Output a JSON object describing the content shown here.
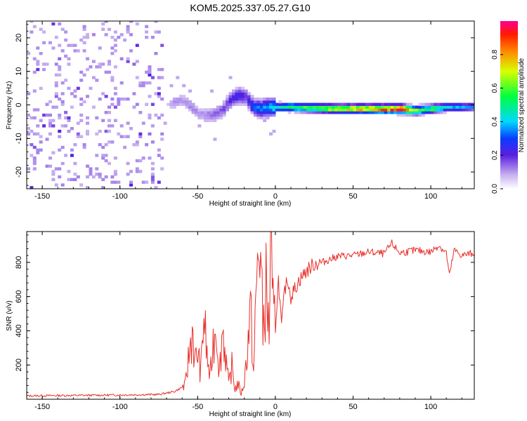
{
  "title": "KOM5.2025.337.05.27.G10",
  "chart_data": [
    {
      "type": "heatmap",
      "title": "KOM5.2025.337.05.27.G10",
      "xlabel": "Height of straight line (km)",
      "ylabel": "Frequency (Hz)",
      "xlim": [
        -160,
        128
      ],
      "ylim": [
        -25,
        25
      ],
      "x_ticks": [
        -150,
        -100,
        -50,
        0,
        50,
        100
      ],
      "y_ticks": [
        -20,
        -10,
        0,
        10,
        20
      ],
      "colorbar": {
        "label": "Normalized spectral amplitude",
        "range": [
          0,
          1
        ],
        "ticks": [
          "0.0",
          "0.2",
          "0.4",
          "0.6",
          "0.8"
        ]
      },
      "trace": {
        "description": "dominant frequency ridge",
        "height_km": [
          -72,
          -66,
          -60,
          -55,
          -50,
          -45,
          -40,
          -35,
          -30,
          -25,
          -20,
          -15,
          -10,
          -5,
          0,
          10,
          20,
          40,
          60,
          80,
          90,
          100,
          110,
          120,
          128
        ],
        "frequency_hz": [
          -1,
          0.5,
          1,
          -1,
          -3,
          -3.5,
          -3,
          -2,
          1,
          2.5,
          2,
          -1,
          -1.5,
          -1,
          -1,
          -1,
          -1.2,
          -1.5,
          -1.5,
          -1.6,
          -2,
          -1.5,
          -1,
          -1,
          -0.8
        ],
        "amplitude": [
          0.05,
          0.1,
          0.1,
          0.12,
          0.1,
          0.12,
          0.15,
          0.15,
          0.2,
          0.25,
          0.2,
          0.3,
          0.35,
          0.4,
          0.45,
          0.5,
          0.6,
          0.7,
          0.8,
          0.95,
          0.6,
          0.55,
          0.4,
          0.35,
          0.3
        ]
      },
      "noise_region_km": [
        -160,
        -72
      ]
    },
    {
      "type": "line",
      "xlabel": "Height of straight line (km)",
      "ylabel": "SNR (v/v)",
      "xlim": [
        -160,
        128
      ],
      "ylim": [
        0,
        980
      ],
      "x_ticks": [
        -150,
        -100,
        -50,
        0,
        50,
        100
      ],
      "y_ticks": [
        200,
        400,
        600,
        800
      ],
      "series": [
        {
          "name": "SNR",
          "color": "#e8302a",
          "x": [
            -160,
            -100,
            -75,
            -65,
            -58,
            -55,
            -53,
            -52,
            -50,
            -48,
            -46,
            -44,
            -42,
            -40,
            -38,
            -36,
            -34,
            -32,
            -30,
            -28,
            -26,
            -24,
            -22,
            -20,
            -18,
            -16,
            -14,
            -12,
            -10,
            -8,
            -6,
            -4,
            -3,
            -2,
            0,
            2,
            4,
            6,
            8,
            10,
            15,
            20,
            25,
            30,
            40,
            50,
            60,
            70,
            75,
            80,
            90,
            100,
            105,
            110,
            112,
            115,
            120,
            125,
            128
          ],
          "y": [
            20,
            25,
            28,
            45,
            80,
            300,
            420,
            200,
            280,
            150,
            500,
            250,
            120,
            330,
            450,
            150,
            420,
            260,
            80,
            190,
            60,
            90,
            30,
            100,
            300,
            520,
            150,
            690,
            950,
            400,
            650,
            380,
            980,
            520,
            420,
            700,
            420,
            640,
            700,
            600,
            690,
            750,
            790,
            800,
            835,
            840,
            860,
            850,
            910,
            855,
            870,
            860,
            900,
            855,
            720,
            870,
            840,
            850,
            855
          ]
        }
      ]
    }
  ]
}
